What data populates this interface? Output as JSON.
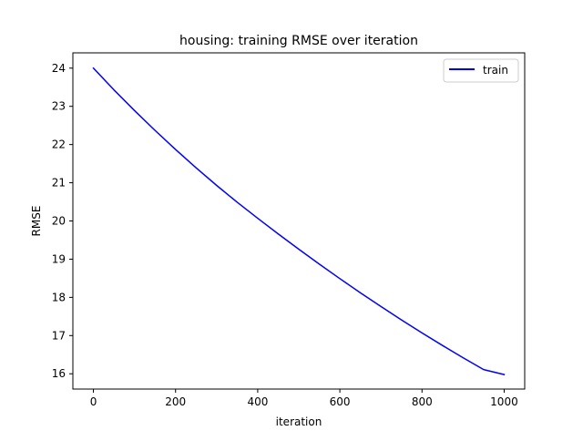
{
  "chart_data": {
    "type": "line",
    "title": "housing: training RMSE over iteration",
    "xlabel": "iteration",
    "ylabel": "RMSE",
    "xlim": [
      -50,
      1050
    ],
    "ylim": [
      15.6,
      24.4
    ],
    "xticks": [
      0,
      200,
      400,
      600,
      800,
      1000
    ],
    "yticks": [
      16,
      17,
      18,
      19,
      20,
      21,
      22,
      23,
      24
    ],
    "grid": false,
    "legend_position": "top-right",
    "series": [
      {
        "name": "train",
        "color": "#0000ff",
        "x": [
          0,
          50,
          100,
          150,
          200,
          250,
          300,
          350,
          400,
          450,
          500,
          550,
          600,
          650,
          700,
          750,
          800,
          850,
          900,
          950,
          1000
        ],
        "y": [
          24.0,
          23.43,
          22.89,
          22.37,
          21.87,
          21.39,
          20.93,
          20.49,
          20.07,
          19.66,
          19.26,
          18.87,
          18.49,
          18.12,
          17.76,
          17.41,
          17.07,
          16.74,
          16.42,
          16.11,
          15.98
        ]
      }
    ]
  }
}
